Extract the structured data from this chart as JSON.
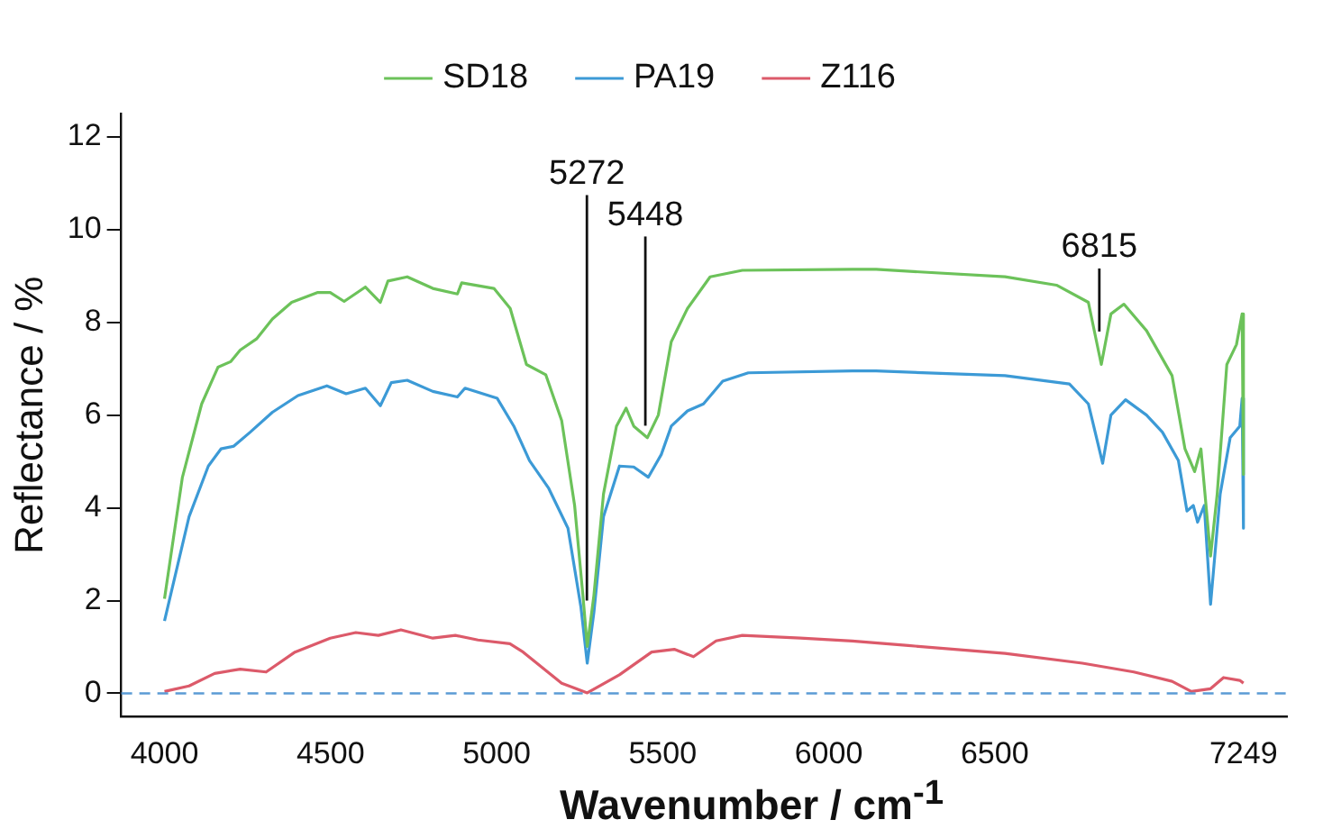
{
  "chart_data": {
    "type": "line",
    "xlabel": "Wavenumber / cm$^{-1}$",
    "ylabel": "Reflectance / %",
    "xlim": [
      3870,
      7380
    ],
    "xticks": [
      4000,
      4500,
      5000,
      5500,
      6000,
      6500,
      7249
    ],
    "ylim": [
      -0.5,
      12.5
    ],
    "yticks": [
      0,
      2,
      4,
      6,
      8,
      10,
      12
    ],
    "legend": "top",
    "grid": false,
    "marker": "none",
    "line_style": "solid",
    "series": [
      {
        "name": "SD18",
        "color": "#6cc25a",
        "x": [
          4000,
          4054,
          4112,
          4161,
          4199,
          4228,
          4277,
          4325,
          4383,
          4460,
          4499,
          4541,
          4605,
          4650,
          4673,
          4731,
          4808,
          4882,
          4895,
          4992,
          5041,
          5090,
          5148,
          5196,
          5235,
          5260,
          5273,
          5293,
          5322,
          5361,
          5390,
          5413,
          5454,
          5487,
          5526,
          5575,
          5643,
          5740,
          6071,
          6143,
          6531,
          6686,
          6782,
          6821,
          6850,
          6889,
          6957,
          7034,
          7073,
          7102,
          7121,
          7150,
          7170,
          7199,
          7228,
          7245,
          7249
        ],
        "values": [
          2.04,
          4.66,
          6.24,
          7.03,
          7.15,
          7.4,
          7.64,
          8.07,
          8.43,
          8.64,
          8.64,
          8.45,
          8.76,
          8.43,
          8.89,
          8.98,
          8.73,
          8.61,
          8.85,
          8.73,
          8.3,
          7.09,
          6.87,
          5.88,
          4.05,
          2.11,
          1.01,
          2.11,
          4.3,
          5.76,
          6.15,
          5.76,
          5.51,
          6.0,
          7.58,
          8.3,
          8.98,
          9.12,
          9.14,
          9.14,
          8.98,
          8.8,
          8.43,
          7.09,
          8.18,
          8.39,
          7.82,
          6.85,
          5.27,
          4.78,
          5.27,
          2.96,
          4.3,
          7.09,
          7.52,
          8.18,
          4.72
        ]
      },
      {
        "name": "PA19",
        "color": "#3c9ad6",
        "x": [
          4000,
          4074,
          4132,
          4170,
          4209,
          4258,
          4325,
          4402,
          4489,
          4547,
          4605,
          4650,
          4683,
          4731,
          4808,
          4882,
          4905,
          5002,
          5052,
          5099,
          5157,
          5215,
          5254,
          5273,
          5293,
          5322,
          5370,
          5413,
          5457,
          5496,
          5526,
          5575,
          5623,
          5681,
          5758,
          6071,
          6143,
          6531,
          6725,
          6782,
          6825,
          6850,
          6894,
          6957,
          7005,
          7053,
          7079,
          7098,
          7111,
          7131,
          7150,
          7179,
          7209,
          7238,
          7245,
          7249
        ],
        "values": [
          1.56,
          3.81,
          4.9,
          5.27,
          5.33,
          5.63,
          6.06,
          6.42,
          6.63,
          6.46,
          6.58,
          6.2,
          6.7,
          6.75,
          6.51,
          6.39,
          6.58,
          6.36,
          5.76,
          5.02,
          4.42,
          3.56,
          1.86,
          0.65,
          1.74,
          3.81,
          4.9,
          4.88,
          4.66,
          5.15,
          5.76,
          6.09,
          6.24,
          6.73,
          6.91,
          6.95,
          6.95,
          6.85,
          6.67,
          6.24,
          4.96,
          6.0,
          6.33,
          6.0,
          5.63,
          5.02,
          3.93,
          4.05,
          3.69,
          4.05,
          1.92,
          4.3,
          5.51,
          5.76,
          6.36,
          3.56
        ]
      },
      {
        "name": "Z116",
        "color": "#dc5a6a",
        "x": [
          4000,
          4074,
          4151,
          4228,
          4306,
          4393,
          4499,
          4576,
          4644,
          4712,
          4808,
          4876,
          4944,
          5040,
          5080,
          5196,
          5273,
          5370,
          5467,
          5535,
          5593,
          5661,
          5740,
          5915,
          6071,
          6240,
          6531,
          6764,
          6919,
          7034,
          7092,
          7150,
          7189,
          7238,
          7249
        ],
        "values": [
          0.04,
          0.16,
          0.43,
          0.52,
          0.46,
          0.89,
          1.19,
          1.31,
          1.25,
          1.37,
          1.19,
          1.25,
          1.15,
          1.07,
          0.89,
          0.22,
          0.01,
          0.4,
          0.89,
          0.95,
          0.79,
          1.13,
          1.25,
          1.19,
          1.13,
          1.03,
          0.86,
          0.65,
          0.46,
          0.26,
          0.04,
          0.1,
          0.34,
          0.28,
          0.22
        ]
      }
    ],
    "ref_lines": [
      {
        "axis": "y",
        "value": 0,
        "color": "#5b9bd5",
        "line_style": "dashed"
      }
    ],
    "annotations": [
      {
        "text": "5272",
        "x": 5272,
        "y": 2.0
      },
      {
        "text": "5448",
        "x": 5448,
        "y": 5.77
      },
      {
        "text": "6815",
        "x": 6815,
        "y": 7.8
      }
    ]
  }
}
